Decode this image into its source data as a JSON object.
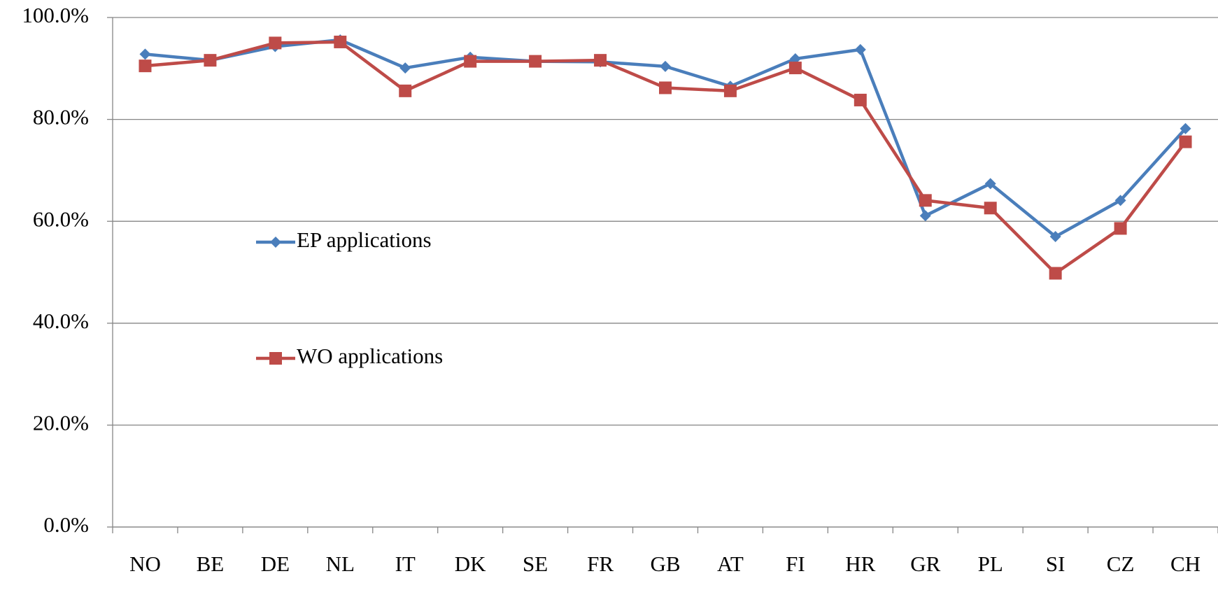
{
  "chart_data": {
    "type": "line",
    "categories": [
      "NO",
      "BE",
      "DE",
      "NL",
      "IT",
      "DK",
      "SE",
      "FR",
      "GB",
      "AT",
      "FI",
      "HR",
      "GR",
      "PL",
      "SI",
      "CZ",
      "CH"
    ],
    "series": [
      {
        "name": "EP applications",
        "color": "#4a7ebb",
        "marker": "diamond",
        "values": [
          92.8,
          91.6,
          94.3,
          95.6,
          90.1,
          92.2,
          91.4,
          91.3,
          90.4,
          86.5,
          91.9,
          93.7,
          61.1,
          67.4,
          57.0,
          64.1,
          78.2
        ]
      },
      {
        "name": "WO applications",
        "color": "#be4b48",
        "marker": "square",
        "values": [
          90.5,
          91.6,
          95.0,
          95.2,
          85.6,
          91.4,
          91.4,
          91.6,
          86.2,
          85.6,
          90.1,
          83.8,
          64.1,
          62.6,
          49.8,
          58.6,
          75.6
        ]
      }
    ],
    "ylim": [
      0,
      100
    ],
    "yticks": [
      {
        "value": 0,
        "label": "0.0%"
      },
      {
        "value": 20,
        "label": "20.0%"
      },
      {
        "value": 40,
        "label": "40.0%"
      },
      {
        "value": 60,
        "label": "60.0%"
      },
      {
        "value": 80,
        "label": "80.0%"
      },
      {
        "value": 100,
        "label": "100.0%"
      }
    ],
    "grid": true,
    "legend": "left"
  }
}
